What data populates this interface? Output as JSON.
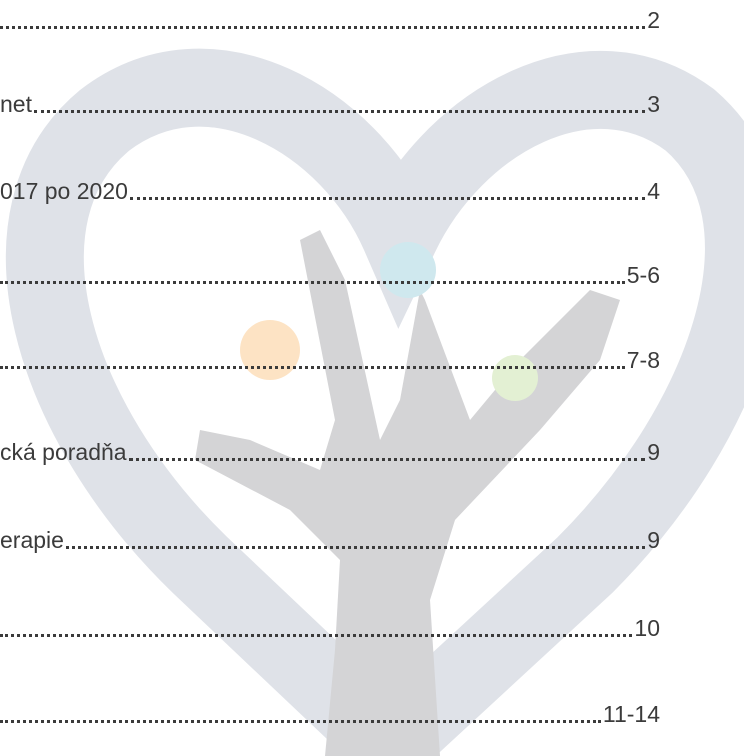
{
  "toc": [
    {
      "page": "2"
    },
    {
      "title": "net",
      "page": "3"
    },
    {
      "title": "017 po 2020",
      "page": "4"
    },
    {
      "page": "5-6"
    },
    {
      "page": "7-8"
    },
    {
      "title": "cká poradňa",
      "page": "9"
    },
    {
      "title": "erapie",
      "page": "9"
    },
    {
      "page": "10"
    },
    {
      "page": "11-14"
    }
  ]
}
